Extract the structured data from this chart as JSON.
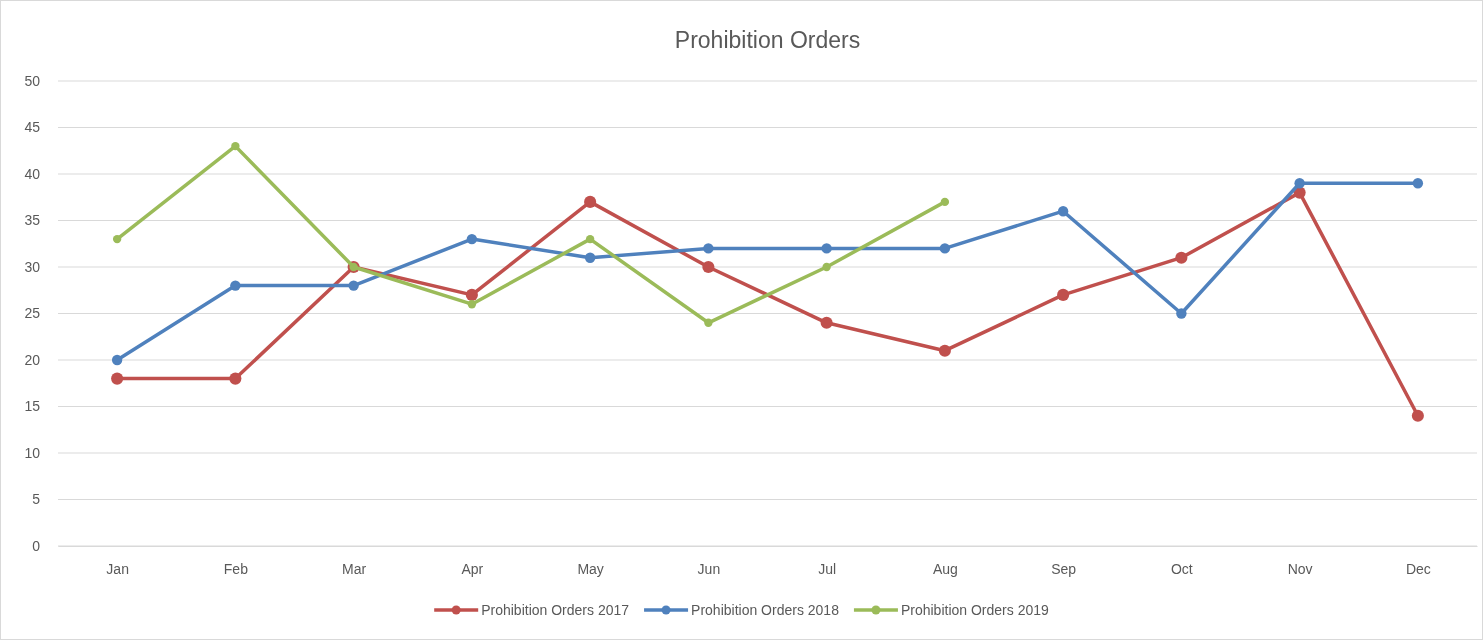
{
  "chart_data": {
    "type": "line",
    "title": "Prohibition Orders",
    "categories": [
      "Jan",
      "Feb",
      "Mar",
      "Apr",
      "May",
      "Jun",
      "Jul",
      "Aug",
      "Sep",
      "Oct",
      "Nov",
      "Dec"
    ],
    "series": [
      {
        "name": "Prohibition Orders 2017",
        "color": "#c0504d",
        "values": [
          18,
          18,
          30,
          27,
          37,
          30,
          24,
          21,
          27,
          31,
          38,
          14
        ]
      },
      {
        "name": "Prohibition Orders 2018",
        "color": "#4f81bd",
        "values": [
          20,
          28,
          28,
          33,
          31,
          32,
          32,
          32,
          36,
          25,
          39,
          39
        ]
      },
      {
        "name": "Prohibition Orders 2019",
        "color": "#9bbb59",
        "values": [
          33,
          43,
          30,
          26,
          33,
          24,
          30,
          37,
          null,
          null,
          null,
          null
        ]
      }
    ],
    "ylim": [
      0,
      50
    ],
    "yticks": [
      0,
      5,
      10,
      15,
      20,
      25,
      30,
      35,
      40,
      45,
      50
    ],
    "grid": "y",
    "legend": "bottom",
    "marker": "circle",
    "line_style": "solid"
  }
}
